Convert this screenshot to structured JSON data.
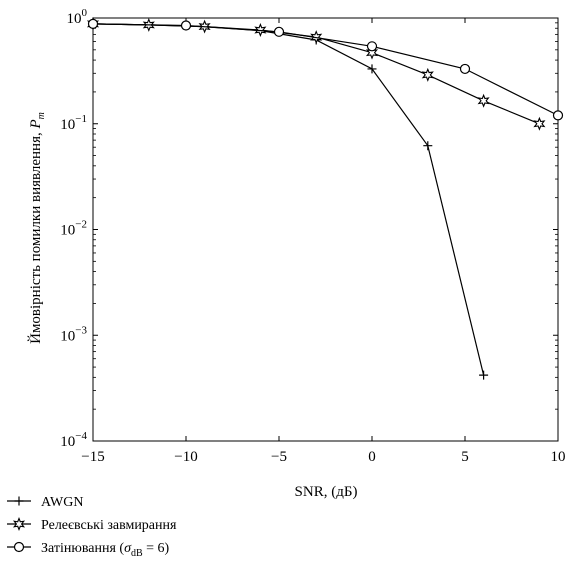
{
  "chart_data": {
    "type": "line",
    "xlabel": "SNR, (дБ)",
    "ylabel": "Ймовірність помилки виявлення, P_m",
    "ylabel_main": "Ймовірність помилки виявлення, ",
    "ylabel_sym": "P",
    "ylabel_sub": "m",
    "xlim": [
      -15,
      10
    ],
    "ylim": [
      0.0001,
      1
    ],
    "yscale": "log",
    "grid": false,
    "legend_position": "below-left",
    "x_ticks": [
      -15,
      -10,
      -5,
      0,
      5,
      10
    ],
    "x_tick_labels": [
      "−15",
      "−10",
      "−5",
      "0",
      "5",
      "10"
    ],
    "y_ticks": [
      {
        "value": 1,
        "exp": "0"
      },
      {
        "value": 0.1,
        "exp": "−1"
      },
      {
        "value": 0.01,
        "exp": "−2"
      },
      {
        "value": 0.001,
        "exp": "−3"
      },
      {
        "value": 0.0001,
        "exp": "−4"
      }
    ],
    "series": [
      {
        "name": "AWGN",
        "marker": "plus",
        "x": [
          -15,
          -12,
          -9,
          -6,
          -3,
          0,
          3,
          6
        ],
        "y": [
          0.88,
          0.86,
          0.83,
          0.76,
          0.62,
          0.33,
          0.062,
          0.00042
        ]
      },
      {
        "name": "Релеєвські завмирання",
        "marker": "star",
        "x": [
          -15,
          -12,
          -9,
          -6,
          -3,
          0,
          3,
          6,
          9
        ],
        "y": [
          0.88,
          0.86,
          0.83,
          0.77,
          0.66,
          0.47,
          0.29,
          0.165,
          0.1
        ]
      },
      {
        "name_parts": [
          "Затінювання (",
          "σ",
          "dB",
          " = 6)"
        ],
        "marker": "circle",
        "x": [
          -15,
          -10,
          -5,
          0,
          5,
          10
        ],
        "y": [
          0.88,
          0.85,
          0.74,
          0.54,
          0.33,
          0.12
        ]
      }
    ]
  }
}
